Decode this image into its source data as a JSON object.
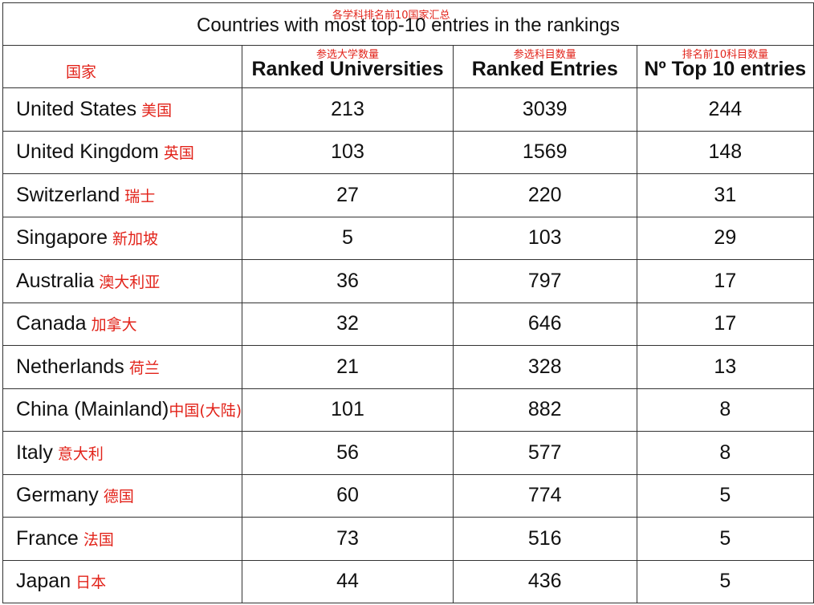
{
  "title": "Countries with most top-10 entries in the rankings",
  "title_annotation": "各学科排名前10国家汇总",
  "columns": [
    {
      "label": "",
      "annotation": "国家"
    },
    {
      "label": "Ranked Universities",
      "annotation": "参选大学数量"
    },
    {
      "label": "Ranked Entries",
      "annotation": "参选科目数量"
    },
    {
      "label": "Nº Top 10 entries",
      "annotation": "排名前10科目数量"
    }
  ],
  "rows": [
    {
      "country": "United States",
      "cn": "美国",
      "universities": "213",
      "entries": "3039",
      "top10": "244"
    },
    {
      "country": "United Kingdom",
      "cn": "英国",
      "universities": "103",
      "entries": "1569",
      "top10": "148"
    },
    {
      "country": "Switzerland",
      "cn": "瑞士",
      "universities": "27",
      "entries": "220",
      "top10": "31"
    },
    {
      "country": "Singapore",
      "cn": "新加坡",
      "universities": "5",
      "entries": "103",
      "top10": "29"
    },
    {
      "country": "Australia",
      "cn": "澳大利亚",
      "universities": "36",
      "entries": "797",
      "top10": "17"
    },
    {
      "country": "Canada",
      "cn": "加拿大",
      "universities": "32",
      "entries": "646",
      "top10": "17"
    },
    {
      "country": "Netherlands",
      "cn": "荷兰",
      "universities": "21",
      "entries": "328",
      "top10": "13"
    },
    {
      "country": "China (Mainland)",
      "cn": "中国(大陆)",
      "universities": "101",
      "entries": "882",
      "top10": "8"
    },
    {
      "country": "Italy",
      "cn": "意大利",
      "universities": "56",
      "entries": "577",
      "top10": "8"
    },
    {
      "country": "Germany",
      "cn": "德国",
      "universities": "60",
      "entries": "774",
      "top10": "5"
    },
    {
      "country": "France",
      "cn": "法国",
      "universities": "73",
      "entries": "516",
      "top10": "5"
    },
    {
      "country": "Japan",
      "cn": "日本",
      "universities": "44",
      "entries": "436",
      "top10": "5"
    }
  ]
}
